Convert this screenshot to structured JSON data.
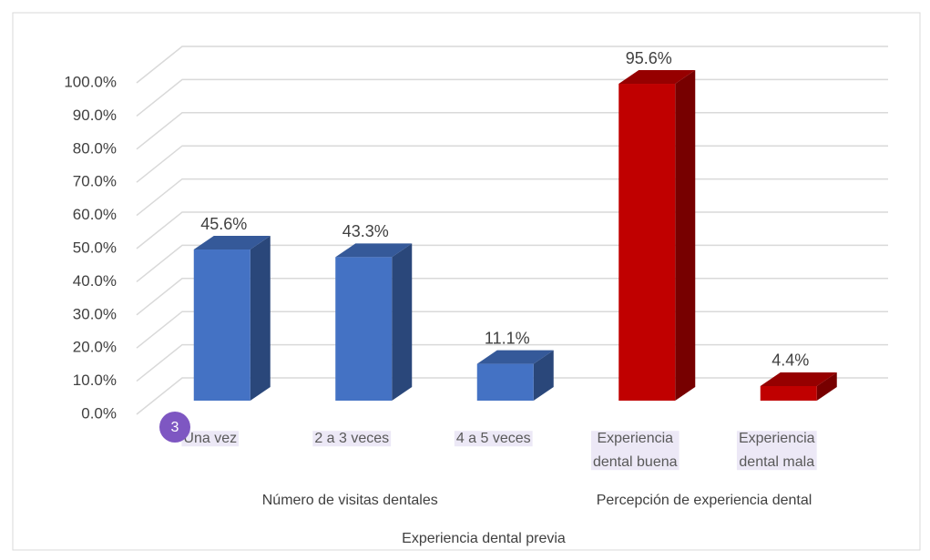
{
  "chart_data": {
    "type": "bar3d",
    "categories": [
      "Una vez",
      "2 a 3 veces",
      "4 a 5 veces",
      "Experiencia dental buena",
      "Experiencia dental mala"
    ],
    "values": [
      45.6,
      43.3,
      11.1,
      95.6,
      4.4
    ],
    "value_labels": [
      "45.6%",
      "43.3%",
      "11.1%",
      "95.6%",
      "4.4%"
    ],
    "colors": [
      "#4472c4",
      "#4472c4",
      "#4472c4",
      "#c00000",
      "#c00000"
    ],
    "groups": [
      {
        "label": "Número de visitas dentales",
        "count": 3
      },
      {
        "label": "Percepción de experiencia dental",
        "count": 2
      }
    ],
    "xlabel": "Experiencia dental previa",
    "badge": "3",
    "ylim": [
      0,
      100
    ],
    "yticks": [
      {
        "value": 0,
        "label": "0.0%"
      },
      {
        "value": 10,
        "label": "10.0%"
      },
      {
        "value": 20,
        "label": "20.0%"
      },
      {
        "value": 30,
        "label": "30.0%"
      },
      {
        "value": 40,
        "label": "40.0%"
      },
      {
        "value": 50,
        "label": "50.0%"
      },
      {
        "value": 60,
        "label": "60.0%"
      },
      {
        "value": 70,
        "label": "70.0%"
      },
      {
        "value": 80,
        "label": "80.0%"
      },
      {
        "value": 90,
        "label": "90.0%"
      },
      {
        "value": 100,
        "label": "100.0%"
      }
    ],
    "grid": true
  }
}
